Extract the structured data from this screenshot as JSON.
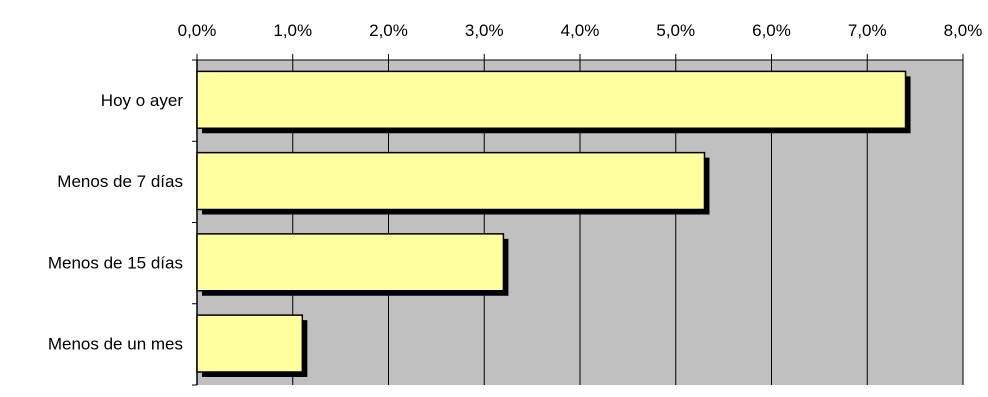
{
  "chart_data": {
    "type": "bar",
    "orientation": "horizontal",
    "categories": [
      "Hoy o ayer",
      "Menos de 7 días",
      "Menos de 15 días",
      "Menos de un mes"
    ],
    "values": [
      7.4,
      5.3,
      3.2,
      1.1
    ],
    "xlim": [
      0,
      8
    ],
    "x_ticks": [
      "0,0%",
      "1,0%",
      "2,0%",
      "3,0%",
      "4,0%",
      "5,0%",
      "6,0%",
      "7,0%",
      "8,0%"
    ],
    "x_axis_position": "top",
    "grid": true,
    "legend": "none",
    "title": "",
    "xlabel": "",
    "ylabel": "",
    "colors": {
      "plot_background": "#c0c0c0",
      "bar_fill": "#ffffa0",
      "bar_shadow": "#000000",
      "gridline": "#000000"
    }
  }
}
